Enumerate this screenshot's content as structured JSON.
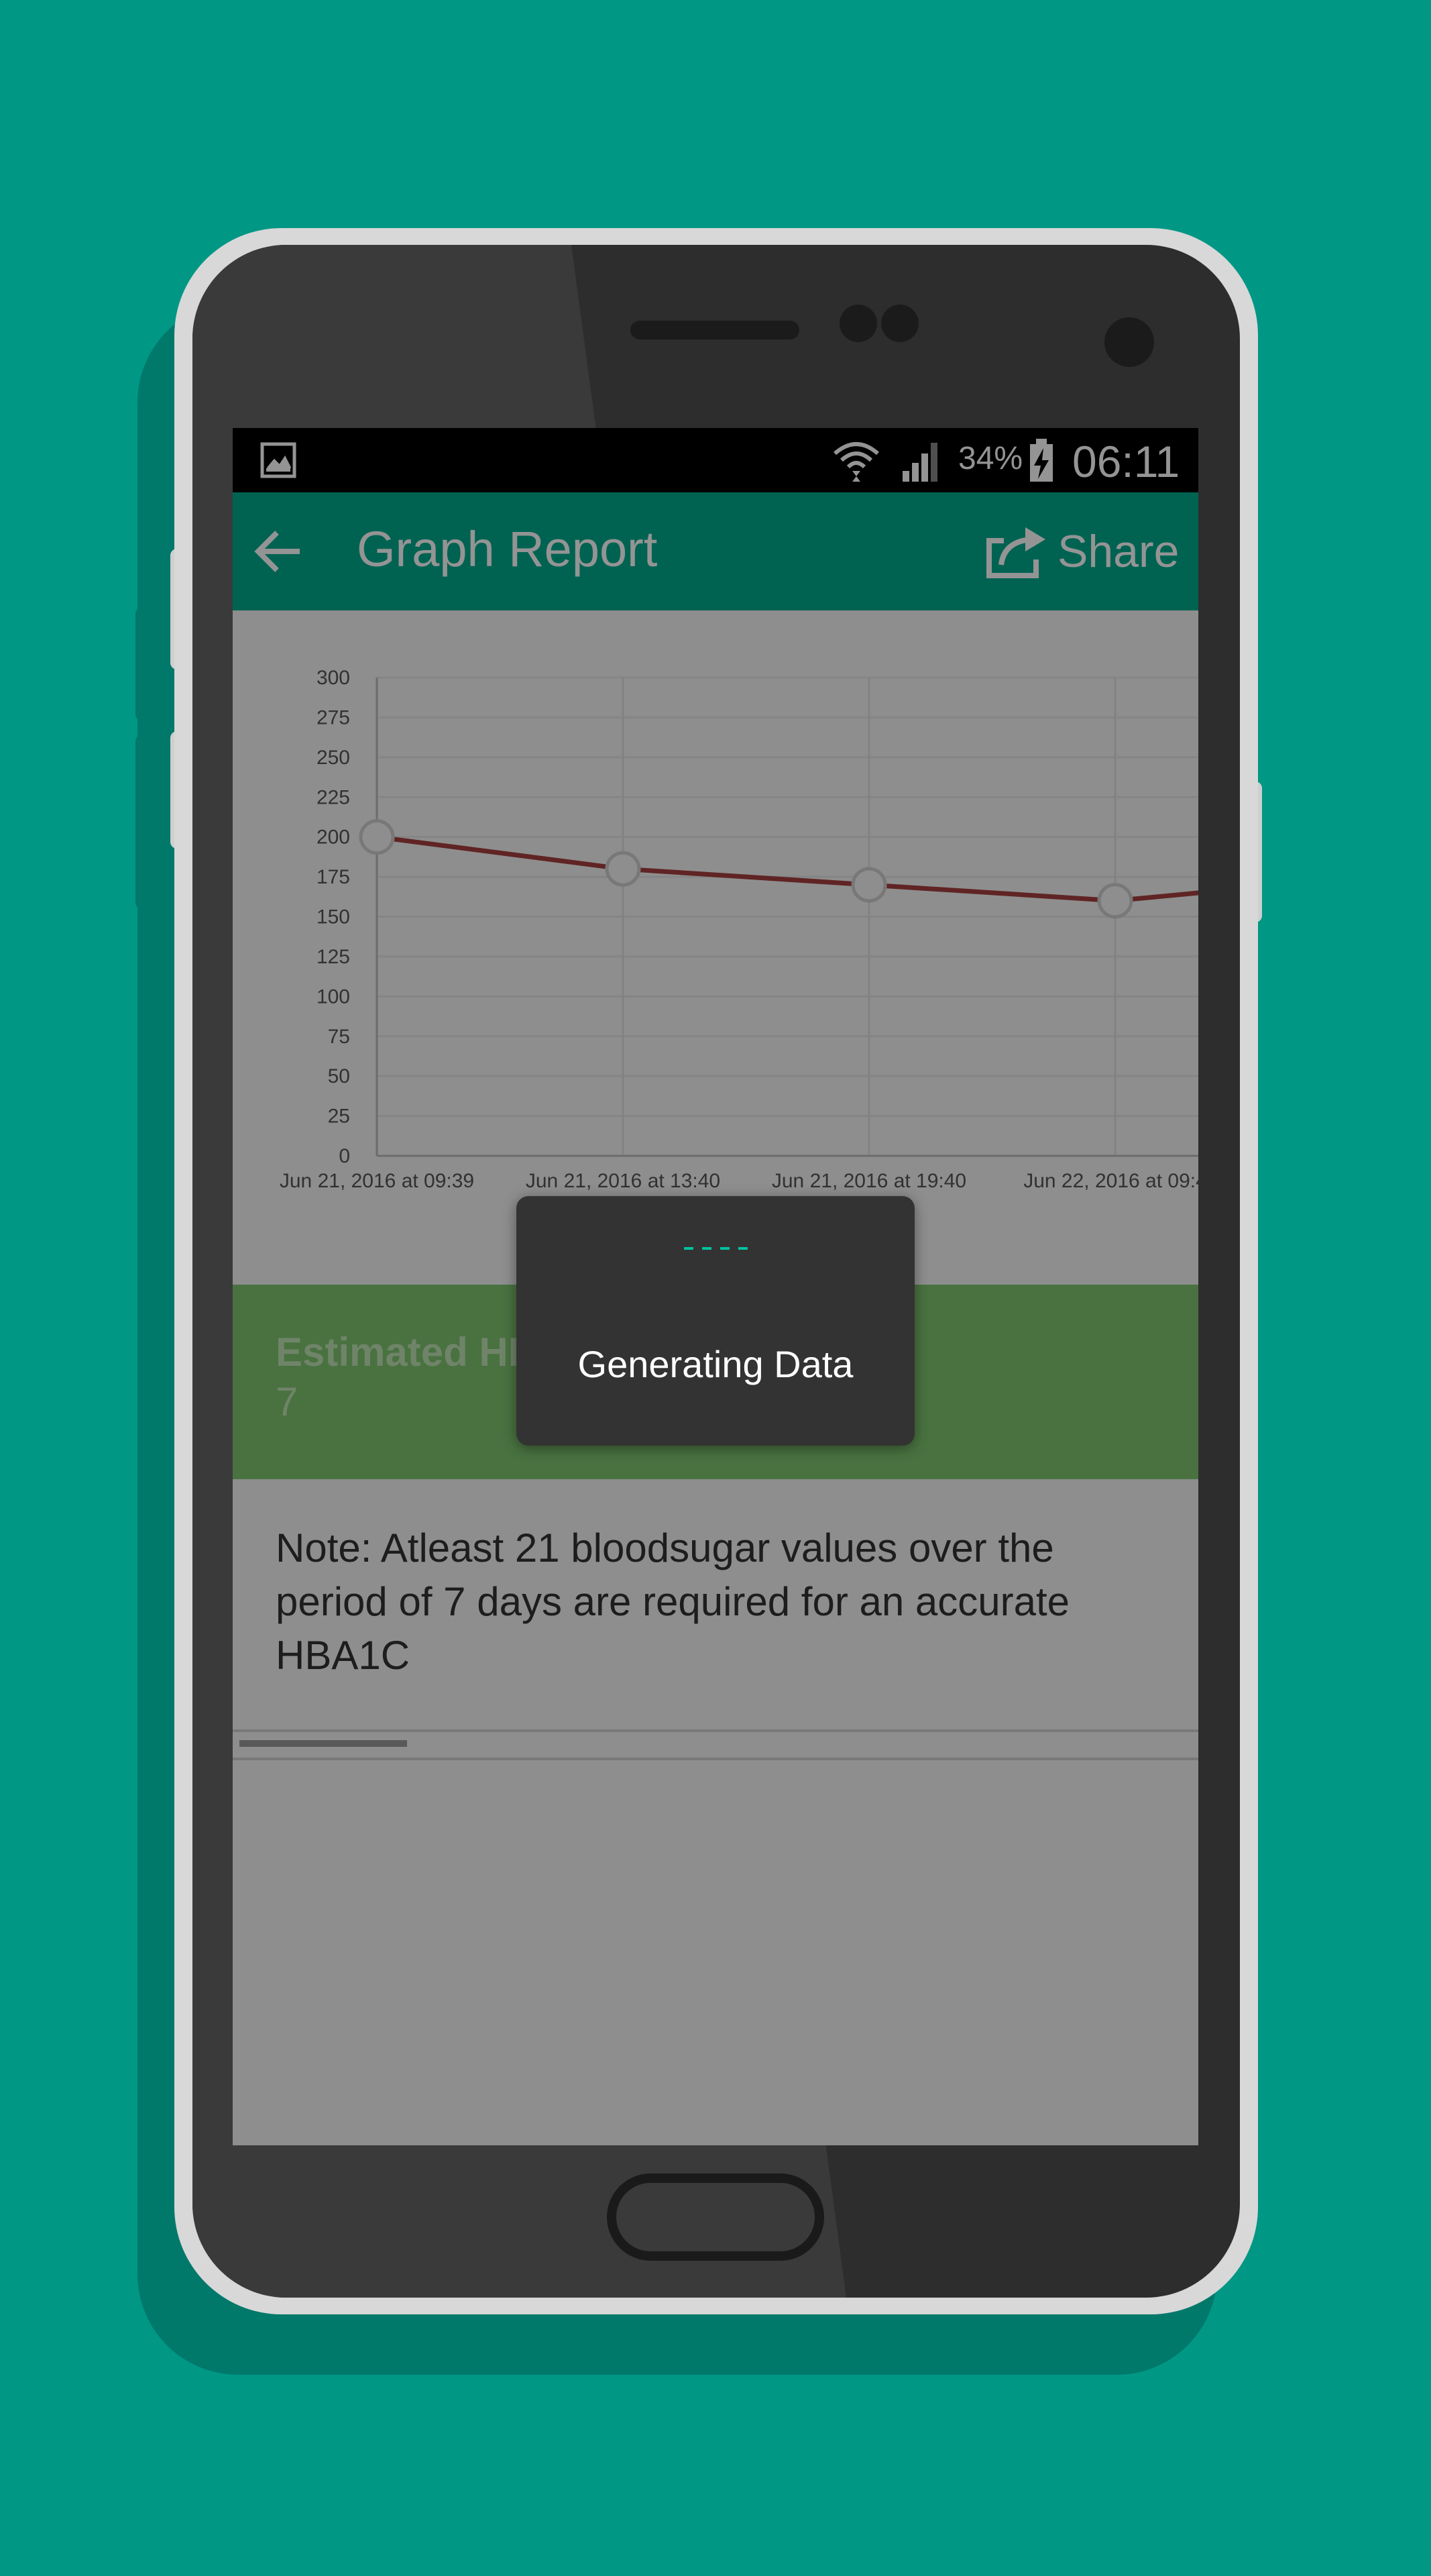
{
  "status_bar": {
    "battery_percent": "34%",
    "time": "06:11"
  },
  "app_bar": {
    "title": "Graph Report",
    "share_label": "Share"
  },
  "chart_data": {
    "type": "line",
    "x": [
      "Jun 21, 2016 at 09:39",
      "Jun 21, 2016 at 13:40",
      "Jun 21, 2016 at 19:40",
      "Jun 22, 2016 at 09:4"
    ],
    "series": [
      {
        "values": [
          200,
          180,
          170,
          160
        ]
      }
    ],
    "y_ticks": [
      0,
      25,
      50,
      75,
      100,
      125,
      150,
      175,
      200,
      225,
      250,
      275,
      300
    ],
    "ylim": [
      0,
      300
    ],
    "grid": true,
    "line_color": "#a63e3e"
  },
  "hba1c": {
    "label": "Estimated HB1AC",
    "value": "7"
  },
  "note": "Note: Atleast 21 bloodsugar values over the period of 7 days are required for an accurate HBA1C",
  "loading_dialog": {
    "message": "Generating Data"
  },
  "colors": {
    "background": "#009785",
    "app_bar": "#00ab8e",
    "hba1c_card": "#7ec56e",
    "chart_line": "#a63e3e"
  }
}
